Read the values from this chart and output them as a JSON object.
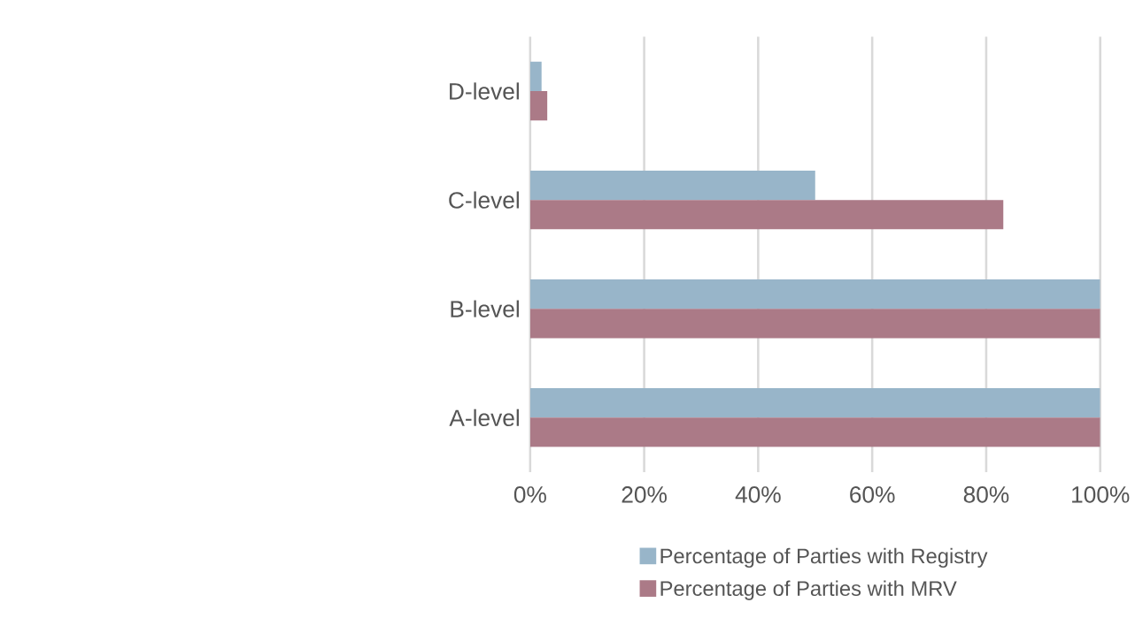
{
  "chart_data": {
    "type": "bar",
    "orientation": "horizontal",
    "categories": [
      "D-level",
      "C-level",
      "B-level",
      "A-level"
    ],
    "series": [
      {
        "name": "Percentage of Parties with Registry",
        "color": "#98b5c9",
        "values": [
          2,
          50,
          100,
          100
        ]
      },
      {
        "name": "Percentage of Parties with MRV",
        "color": "#ab7a87",
        "values": [
          3,
          83,
          100,
          100
        ]
      }
    ],
    "xlim": [
      0,
      100
    ],
    "xticks": [
      {
        "value": 0,
        "label": "0%"
      },
      {
        "value": 20,
        "label": "20%"
      },
      {
        "value": 40,
        "label": "40%"
      },
      {
        "value": 60,
        "label": "60%"
      },
      {
        "value": 80,
        "label": "80%"
      },
      {
        "value": 100,
        "label": "100%"
      }
    ],
    "grid": "x",
    "legend": "bottom"
  }
}
